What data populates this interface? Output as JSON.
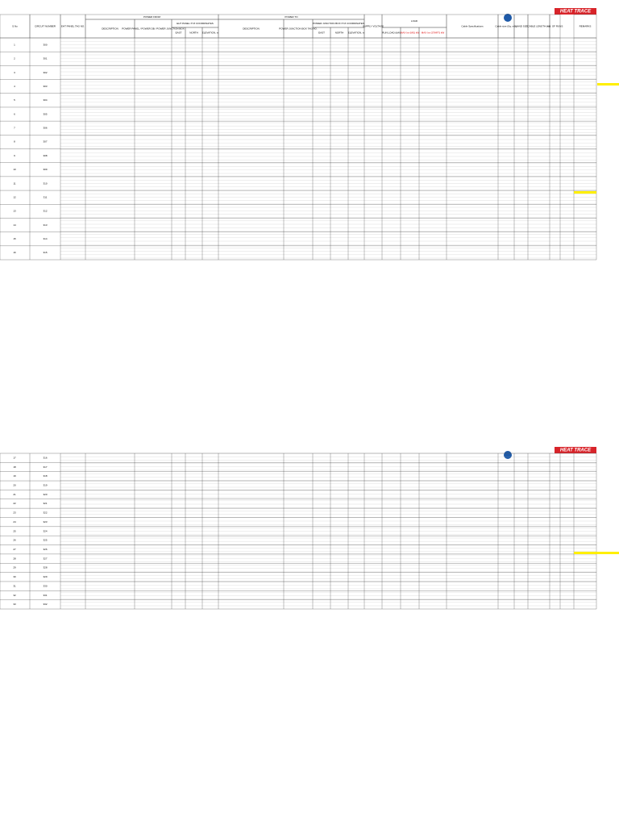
{
  "columns": [
    "S.No",
    "CIRCUIT NUMBER",
    "EHT PANEL TAG NO.",
    "POWER FROM",
    "DESCRIPTION",
    "POWER PANEL / POWER DB / POWER JUNCTION BOX",
    "EHT PANEL XYZ COORDINATES",
    "EAST",
    "NORTH",
    "ELEVATION, m",
    "POWER TO",
    "DESCRIPTION",
    "POWER JUNCTION BOX TAG NO.",
    "POWER JUNCTION BOX XYZ COORDINATES",
    "EAST",
    "NORTH",
    "ELEVATION, m",
    "SUPPLY VOLTAGE",
    "LOAD",
    "RUN LOAD (kW)",
    "MAX Inr (MS) kW",
    "MAX Inr (START) kW",
    "Cable Specifications",
    "Cable size (Sq. mm)",
    "GLAND SIZE",
    "CABLE LENGTH (m)",
    "NO. OF RUNS",
    "REMARKS"
  ],
  "logo": "HEAT TRACE",
  "pages": [
    {
      "groups": [
        {
          "sno": "1",
          "circuit": "300"
        },
        {
          "sno": "2",
          "circuit": "301"
        },
        {
          "sno": "3",
          "circuit": "302"
        },
        {
          "sno": "4",
          "circuit": "303"
        },
        {
          "sno": "5",
          "circuit": "304"
        },
        {
          "sno": "6",
          "circuit": "305"
        },
        {
          "sno": "7",
          "circuit": "306"
        },
        {
          "sno": "8",
          "circuit": "307"
        },
        {
          "sno": "9",
          "circuit": "308"
        },
        {
          "sno": "10",
          "circuit": "309"
        },
        {
          "sno": "11",
          "circuit": "310"
        },
        {
          "sno": "12",
          "circuit": "311"
        },
        {
          "sno": "13",
          "circuit": "312"
        },
        {
          "sno": "14",
          "circuit": "313"
        },
        {
          "sno": "15",
          "circuit": "314"
        },
        {
          "sno": "16",
          "circuit": "315"
        }
      ]
    },
    {
      "groups": [
        {
          "sno": "17",
          "circuit": "316"
        },
        {
          "sno": "18",
          "circuit": "317"
        },
        {
          "sno": "19",
          "circuit": "318"
        },
        {
          "sno": "20",
          "circuit": "319"
        },
        {
          "sno": "21",
          "circuit": "320"
        },
        {
          "sno": "22",
          "circuit": "321"
        },
        {
          "sno": "23",
          "circuit": "322"
        },
        {
          "sno": "24",
          "circuit": "323"
        },
        {
          "sno": "25",
          "circuit": "324"
        },
        {
          "sno": "26",
          "circuit": "325"
        },
        {
          "sno": "27",
          "circuit": "326"
        },
        {
          "sno": "28",
          "circuit": "327"
        },
        {
          "sno": "29",
          "circuit": "328"
        },
        {
          "sno": "30",
          "circuit": "329"
        },
        {
          "sno": "31",
          "circuit": "330"
        },
        {
          "sno": "32",
          "circuit": "331"
        },
        {
          "sno": "33",
          "circuit": "332"
        }
      ]
    }
  ]
}
